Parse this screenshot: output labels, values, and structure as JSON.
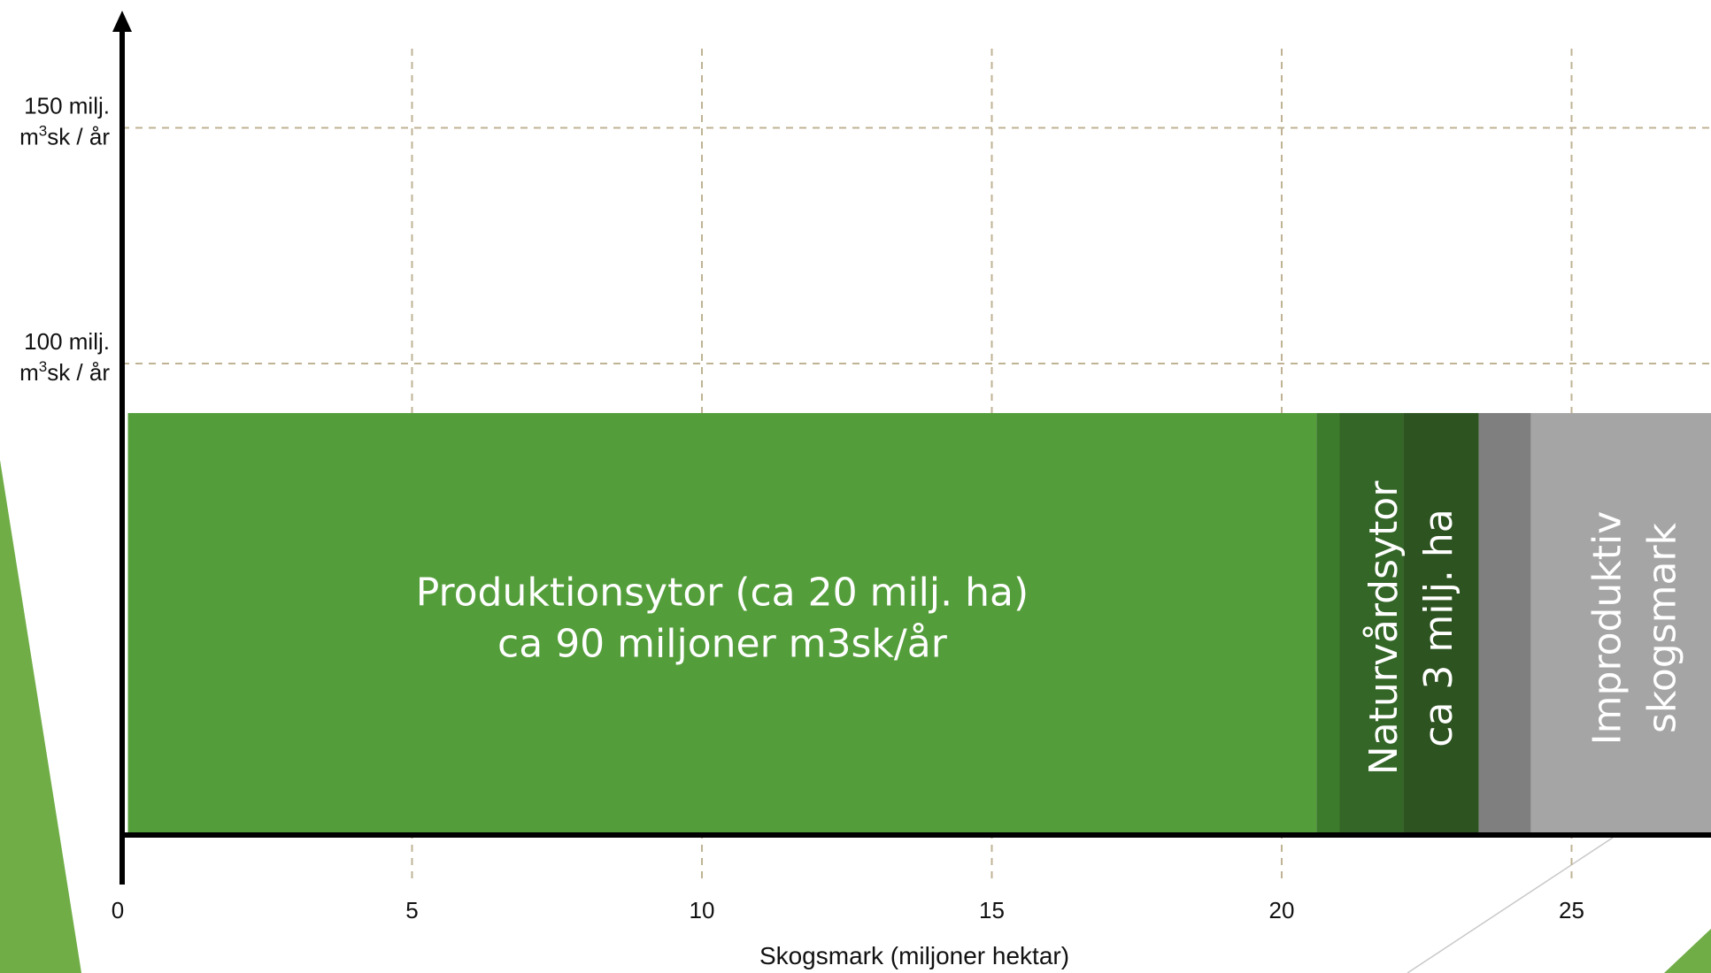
{
  "chart_data": {
    "type": "bar",
    "orientation": "horizontal-stacked",
    "xlabel": "Skogsmark (miljoner hektar)",
    "xlim": [
      0,
      27.8
    ],
    "ylim": [
      0,
      175
    ],
    "x_ticks": [
      "0",
      "5",
      "10",
      "15",
      "20",
      "25"
    ],
    "y_ticks": [
      {
        "value": 100,
        "line1": "100 milj.",
        "line2_a": "m",
        "line2_sup": "3",
        "line2_b": "sk / år"
      },
      {
        "value": 150,
        "line1": "150 milj.",
        "line2_a": "m",
        "line2_sup": "3",
        "line2_b": "sk / år"
      }
    ],
    "grid": "dashed",
    "segments": [
      {
        "start": 0.1,
        "end": 20.6,
        "height": 89.5,
        "color": "#539d3a",
        "label_lines": [
          "Produktionsytor (ca 20 milj. ha)",
          "ca 90 miljoner m3sk/år"
        ],
        "label_orientation": "horizontal"
      },
      {
        "start": 20.6,
        "end": 21.0,
        "height": 89.5,
        "color": "#3c7a2c",
        "label_lines": [],
        "label_orientation": "none"
      },
      {
        "start": 21.0,
        "end": 22.1,
        "height": 89.5,
        "color": "#346628",
        "label_lines": [],
        "label_orientation": "none"
      },
      {
        "start": 22.1,
        "end": 23.4,
        "height": 89.5,
        "color": "#2d5320",
        "label_lines": [],
        "label_orientation": "none"
      },
      {
        "start": 23.4,
        "end": 24.3,
        "height": 89.5,
        "color": "#7f7f7f",
        "label_lines": [],
        "label_orientation": "none"
      },
      {
        "start": 24.3,
        "end": 27.8,
        "height": 89.5,
        "color": "#a5a5a5",
        "label_lines": [],
        "label_orientation": "none"
      }
    ],
    "vertical_labels": [
      {
        "lines": [
          "Naturvårdsytor",
          "ca 3 milj. ha"
        ],
        "center_x": 22.2
      },
      {
        "lines": [
          "Improduktiv",
          "skogsmark"
        ],
        "center_x": 26.05
      }
    ]
  }
}
